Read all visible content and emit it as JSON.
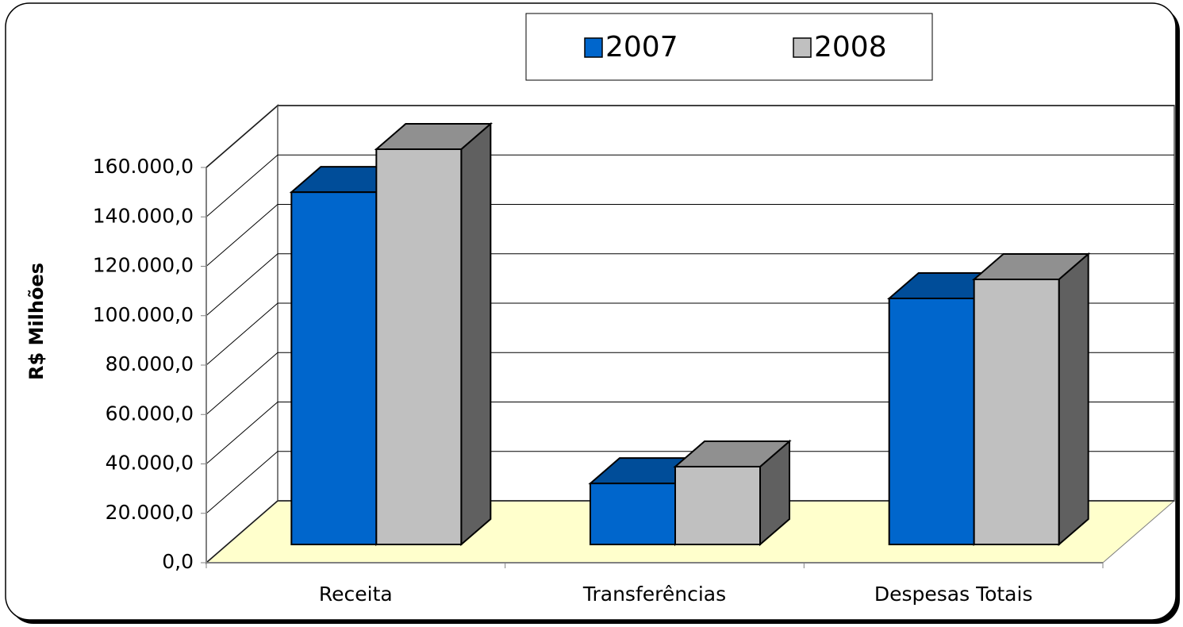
{
  "chart_data": {
    "type": "bar3d",
    "categories": [
      "Receita",
      "Transferências",
      "Despesas Totais"
    ],
    "series": [
      {
        "name": "2007",
        "color": "#0066cc",
        "values": [
          142600,
          24700,
          99600
        ]
      },
      {
        "name": "2008",
        "color": "#c0c0c0",
        "values": [
          160000,
          31500,
          107300
        ]
      }
    ],
    "ylabel": "R$ Milhões",
    "ylim": [
      0,
      160000
    ],
    "yticks": [
      {
        "value": 0,
        "label": "0,0"
      },
      {
        "value": 20000,
        "label": "20.000,0"
      },
      {
        "value": 40000,
        "label": "40.000,0"
      },
      {
        "value": 60000,
        "label": "60.000,0"
      },
      {
        "value": 80000,
        "label": "80.000,0"
      },
      {
        "value": 100000,
        "label": "100.000,0"
      },
      {
        "value": 120000,
        "label": "120.000,0"
      },
      {
        "value": 140000,
        "label": "140.000,0"
      },
      {
        "value": 160000,
        "label": "160.000,0"
      }
    ],
    "grid": true,
    "floor_color": "#ffffcc"
  }
}
